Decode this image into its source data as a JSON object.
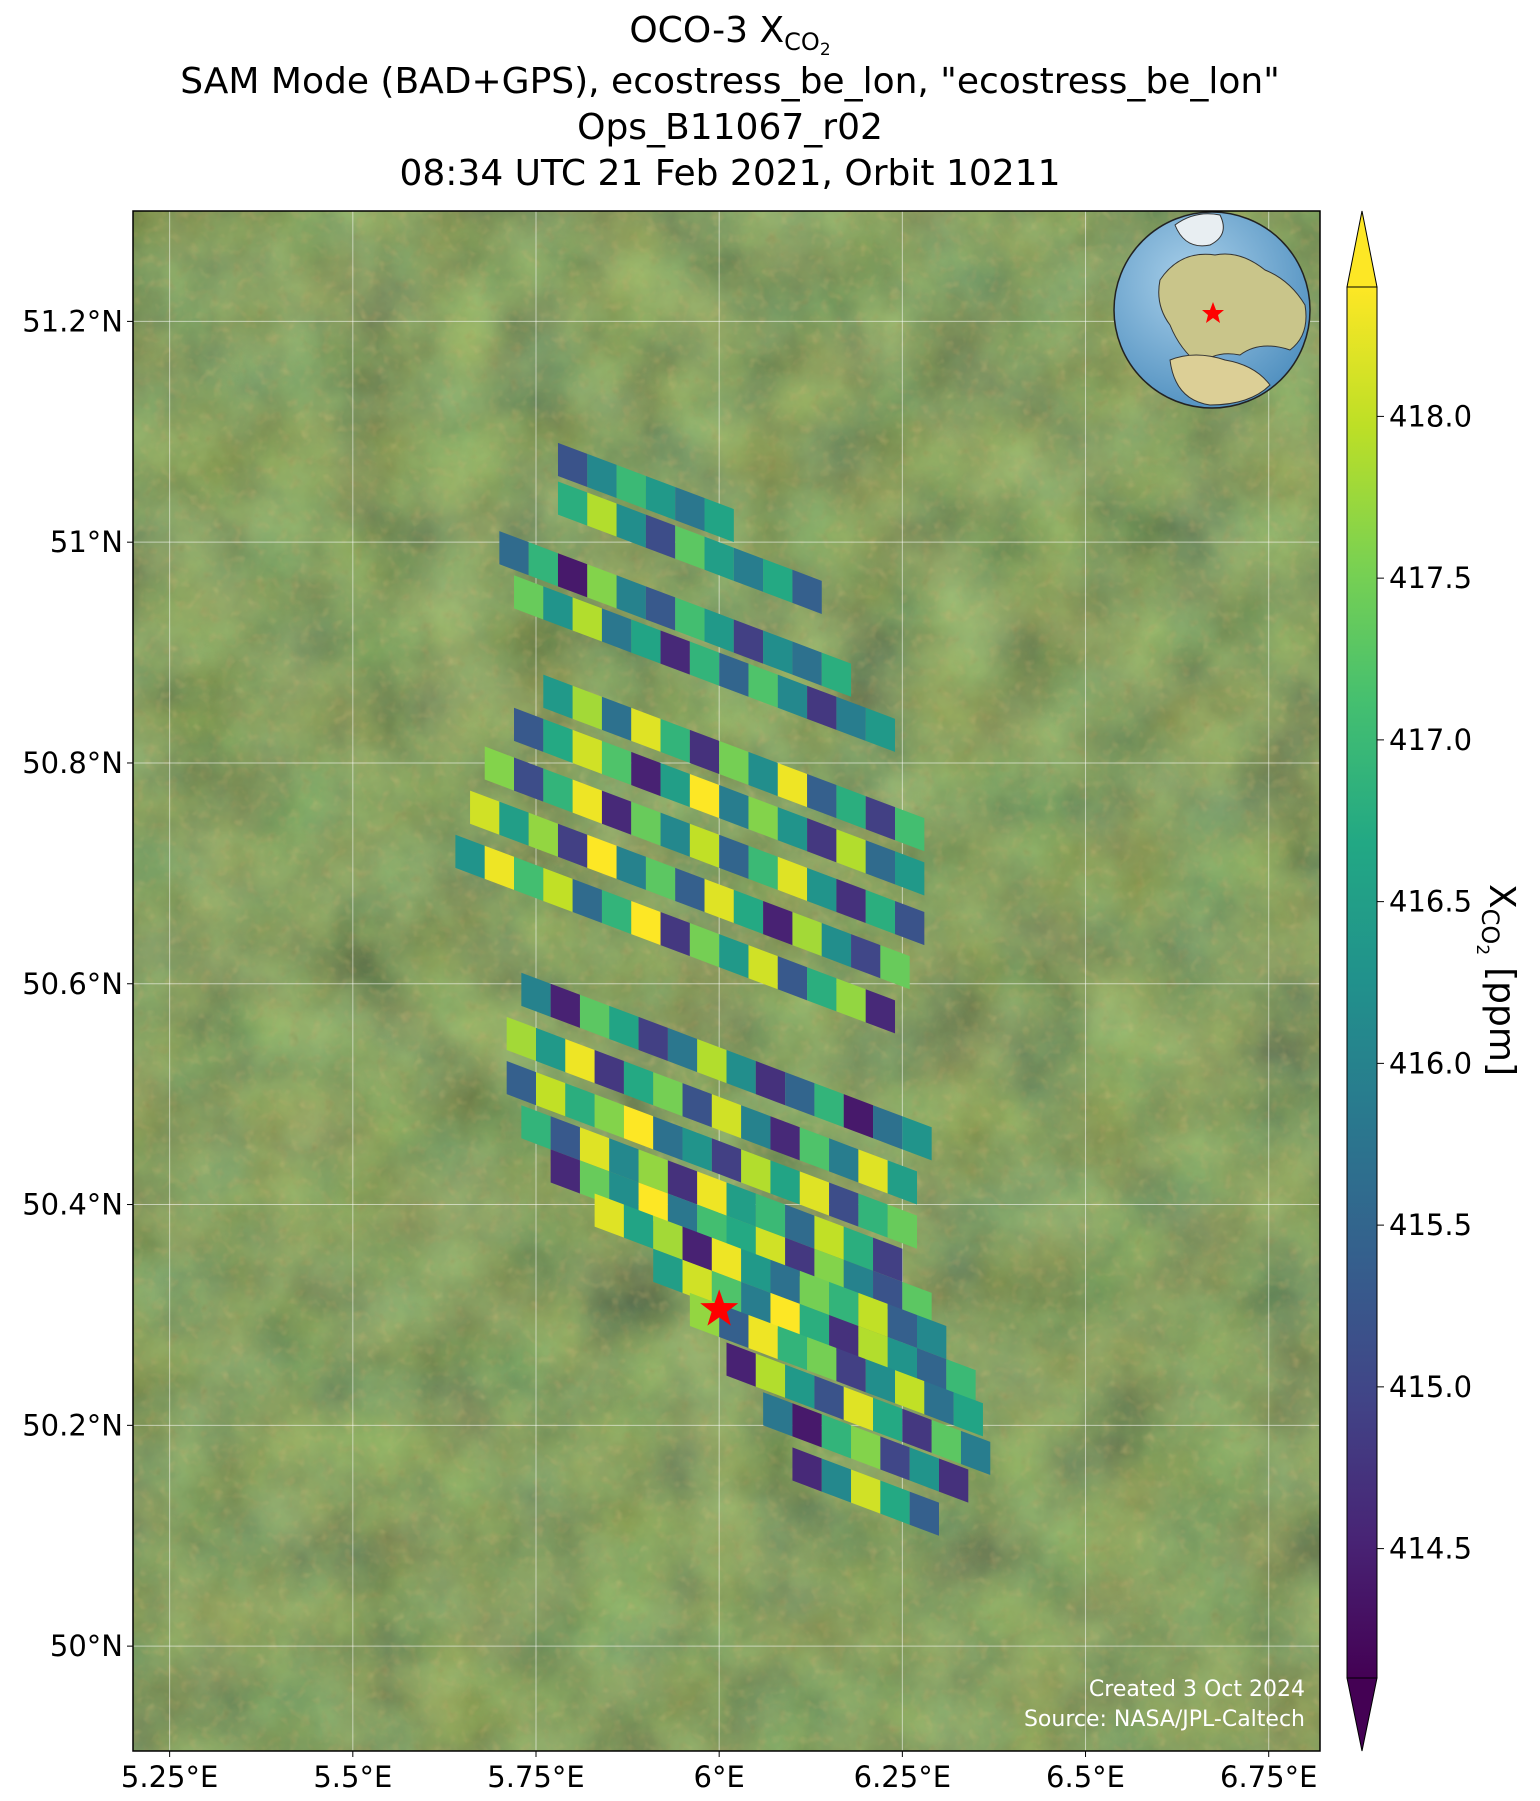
{
  "chart_data": {
    "type": "map",
    "title": {
      "symbol": "OCO-3 X",
      "subscript": "CO",
      "subsubscript": "2"
    },
    "subtitle_lines": [
      "SAM Mode (BAD+GPS), ecostress_be_lon, \"ecostress_be_lon\"",
      "Ops_B11067_r02",
      "08:34 UTC 21 Feb 2021, Orbit 10211"
    ],
    "xlim": [
      5.2,
      6.82
    ],
    "ylim": [
      49.905,
      51.3
    ],
    "xticks": [
      {
        "value": 5.25,
        "label": "5.25°E"
      },
      {
        "value": 5.5,
        "label": "5.5°E"
      },
      {
        "value": 5.75,
        "label": "5.75°E"
      },
      {
        "value": 6.0,
        "label": "6°E"
      },
      {
        "value": 6.25,
        "label": "6.25°E"
      },
      {
        "value": 6.5,
        "label": "6.5°E"
      },
      {
        "value": 6.75,
        "label": "6.75°E"
      }
    ],
    "yticks": [
      {
        "value": 50.0,
        "label": "50°N"
      },
      {
        "value": 50.2,
        "label": "50.2°N"
      },
      {
        "value": 50.4,
        "label": "50.4°N"
      },
      {
        "value": 50.6,
        "label": "50.6°N"
      },
      {
        "value": 50.8,
        "label": "50.8°N"
      },
      {
        "value": 51.0,
        "label": "51°N"
      },
      {
        "value": 51.2,
        "label": "51.2°N"
      }
    ],
    "grid": true,
    "clim": [
      414.1,
      418.4
    ],
    "colormap": "viridis",
    "colorbar_ticks": [
      414.5,
      {
        "value": 415.0,
        "label": "415.0"
      },
      415.5,
      {
        "value": 416.0,
        "label": "416.0"
      },
      416.5,
      {
        "value": 417.0,
        "label": "417.0"
      },
      417.5,
      {
        "value": 418.0,
        "label": "418.0"
      }
    ],
    "colorbar_label": {
      "symbol": "X",
      "subscript": "CO",
      "subsubscript": "2",
      "units": "[ppm]"
    },
    "target": {
      "lon": 6.0,
      "lat": 50.305,
      "color": "#ff0000"
    },
    "annotations": [
      "Created 3 Oct 2024",
      "Source: NASA/JPL-Caltech"
    ],
    "footprints": [
      [
        5.8,
        51.07,
        415.2
      ],
      [
        5.84,
        51.06,
        416.1
      ],
      [
        5.88,
        51.05,
        417.0
      ],
      [
        5.92,
        51.04,
        416.4
      ],
      [
        5.96,
        51.03,
        415.8
      ],
      [
        6.0,
        51.02,
        416.6
      ],
      [
        5.8,
        51.035,
        416.8
      ],
      [
        5.84,
        51.025,
        417.9
      ],
      [
        5.88,
        51.015,
        416.2
      ],
      [
        5.92,
        51.005,
        415.1
      ],
      [
        5.96,
        50.995,
        417.3
      ],
      [
        6.0,
        50.985,
        416.5
      ],
      [
        6.04,
        50.975,
        415.9
      ],
      [
        6.08,
        50.965,
        416.7
      ],
      [
        6.12,
        50.955,
        415.4
      ],
      [
        5.72,
        50.99,
        415.6
      ],
      [
        5.76,
        50.98,
        416.9
      ],
      [
        5.8,
        50.97,
        414.4
      ],
      [
        5.84,
        50.96,
        417.6
      ],
      [
        5.88,
        50.95,
        416.0
      ],
      [
        5.92,
        50.94,
        415.3
      ],
      [
        5.96,
        50.93,
        417.1
      ],
      [
        6.0,
        50.92,
        416.4
      ],
      [
        6.04,
        50.91,
        414.9
      ],
      [
        6.08,
        50.9,
        416.2
      ],
      [
        6.12,
        50.89,
        415.7
      ],
      [
        6.16,
        50.88,
        416.8
      ],
      [
        5.74,
        50.95,
        417.4
      ],
      [
        5.78,
        50.94,
        416.3
      ],
      [
        5.82,
        50.93,
        417.9
      ],
      [
        5.86,
        50.92,
        415.8
      ],
      [
        5.9,
        50.91,
        416.6
      ],
      [
        5.94,
        50.9,
        414.6
      ],
      [
        5.98,
        50.89,
        416.9
      ],
      [
        6.02,
        50.88,
        415.5
      ],
      [
        6.06,
        50.87,
        417.2
      ],
      [
        6.1,
        50.86,
        416.1
      ],
      [
        6.14,
        50.85,
        414.8
      ],
      [
        6.18,
        50.84,
        415.9
      ],
      [
        6.22,
        50.83,
        416.4
      ],
      [
        5.78,
        50.86,
        416.4
      ],
      [
        5.82,
        50.85,
        417.8
      ],
      [
        5.86,
        50.84,
        415.7
      ],
      [
        5.9,
        50.83,
        418.2
      ],
      [
        5.94,
        50.82,
        416.9
      ],
      [
        5.98,
        50.81,
        414.7
      ],
      [
        6.02,
        50.8,
        417.5
      ],
      [
        6.06,
        50.79,
        416.2
      ],
      [
        6.1,
        50.78,
        418.3
      ],
      [
        6.14,
        50.77,
        415.4
      ],
      [
        6.18,
        50.76,
        416.8
      ],
      [
        6.22,
        50.75,
        414.9
      ],
      [
        6.26,
        50.74,
        417.1
      ],
      [
        5.74,
        50.83,
        415.3
      ],
      [
        5.78,
        50.82,
        416.7
      ],
      [
        5.82,
        50.81,
        418.1
      ],
      [
        5.86,
        50.8,
        417.2
      ],
      [
        5.9,
        50.79,
        414.5
      ],
      [
        5.94,
        50.78,
        416.5
      ],
      [
        5.98,
        50.77,
        418.4
      ],
      [
        6.02,
        50.76,
        415.9
      ],
      [
        6.06,
        50.75,
        417.6
      ],
      [
        6.1,
        50.74,
        416.3
      ],
      [
        6.14,
        50.73,
        414.8
      ],
      [
        6.18,
        50.72,
        417.9
      ],
      [
        6.22,
        50.71,
        415.6
      ],
      [
        6.26,
        50.7,
        416.4
      ],
      [
        5.7,
        50.795,
        417.6
      ],
      [
        5.74,
        50.785,
        415.1
      ],
      [
        5.78,
        50.775,
        416.9
      ],
      [
        5.82,
        50.765,
        418.3
      ],
      [
        5.86,
        50.755,
        414.6
      ],
      [
        5.9,
        50.745,
        417.4
      ],
      [
        5.94,
        50.735,
        416.1
      ],
      [
        5.98,
        50.725,
        418.0
      ],
      [
        6.02,
        50.715,
        415.5
      ],
      [
        6.06,
        50.705,
        417.0
      ],
      [
        6.1,
        50.695,
        418.2
      ],
      [
        6.14,
        50.685,
        416.3
      ],
      [
        6.18,
        50.675,
        414.7
      ],
      [
        6.22,
        50.665,
        416.8
      ],
      [
        6.26,
        50.655,
        415.2
      ],
      [
        5.68,
        50.755,
        418.1
      ],
      [
        5.72,
        50.745,
        416.5
      ],
      [
        5.76,
        50.735,
        417.7
      ],
      [
        5.8,
        50.725,
        414.9
      ],
      [
        5.84,
        50.715,
        418.4
      ],
      [
        5.88,
        50.705,
        416.0
      ],
      [
        5.92,
        50.695,
        417.3
      ],
      [
        5.96,
        50.685,
        415.4
      ],
      [
        6.0,
        50.675,
        418.2
      ],
      [
        6.04,
        50.665,
        416.7
      ],
      [
        6.08,
        50.655,
        414.5
      ],
      [
        6.12,
        50.645,
        417.8
      ],
      [
        6.16,
        50.635,
        416.2
      ],
      [
        6.2,
        50.625,
        415.0
      ],
      [
        6.24,
        50.615,
        417.4
      ],
      [
        5.66,
        50.715,
        416.3
      ],
      [
        5.7,
        50.705,
        418.3
      ],
      [
        5.74,
        50.695,
        417.1
      ],
      [
        5.78,
        50.685,
        418.0
      ],
      [
        5.82,
        50.675,
        415.6
      ],
      [
        5.86,
        50.665,
        416.9
      ],
      [
        5.9,
        50.655,
        418.4
      ],
      [
        5.94,
        50.645,
        414.8
      ],
      [
        5.98,
        50.635,
        417.5
      ],
      [
        6.02,
        50.625,
        416.4
      ],
      [
        6.06,
        50.615,
        418.1
      ],
      [
        6.1,
        50.605,
        415.3
      ],
      [
        6.14,
        50.595,
        416.8
      ],
      [
        6.18,
        50.585,
        417.7
      ],
      [
        6.22,
        50.575,
        414.6
      ],
      [
        5.75,
        50.59,
        416.0
      ],
      [
        5.79,
        50.58,
        414.5
      ],
      [
        5.83,
        50.57,
        417.3
      ],
      [
        5.87,
        50.56,
        416.6
      ],
      [
        5.91,
        50.55,
        414.9
      ],
      [
        5.95,
        50.54,
        415.8
      ],
      [
        5.99,
        50.53,
        417.9
      ],
      [
        6.03,
        50.52,
        416.2
      ],
      [
        6.07,
        50.51,
        414.7
      ],
      [
        6.11,
        50.5,
        415.5
      ],
      [
        6.15,
        50.49,
        416.9
      ],
      [
        6.19,
        50.48,
        414.4
      ],
      [
        6.23,
        50.47,
        415.7
      ],
      [
        6.27,
        50.46,
        416.3
      ],
      [
        5.73,
        50.55,
        417.8
      ],
      [
        5.77,
        50.54,
        416.4
      ],
      [
        5.81,
        50.53,
        418.3
      ],
      [
        5.85,
        50.52,
        414.8
      ],
      [
        5.89,
        50.51,
        416.7
      ],
      [
        5.93,
        50.5,
        417.5
      ],
      [
        5.97,
        50.49,
        415.2
      ],
      [
        6.01,
        50.48,
        418.1
      ],
      [
        6.05,
        50.47,
        416.0
      ],
      [
        6.09,
        50.46,
        414.6
      ],
      [
        6.13,
        50.45,
        417.2
      ],
      [
        6.17,
        50.44,
        415.9
      ],
      [
        6.21,
        50.43,
        418.2
      ],
      [
        6.25,
        50.42,
        416.5
      ],
      [
        5.73,
        50.51,
        415.4
      ],
      [
        5.77,
        50.5,
        418.0
      ],
      [
        5.81,
        50.49,
        416.8
      ],
      [
        5.85,
        50.48,
        417.6
      ],
      [
        5.89,
        50.47,
        418.4
      ],
      [
        5.93,
        50.46,
        415.7
      ],
      [
        5.97,
        50.45,
        416.3
      ],
      [
        6.01,
        50.44,
        414.9
      ],
      [
        6.05,
        50.43,
        417.9
      ],
      [
        6.09,
        50.42,
        416.6
      ],
      [
        6.13,
        50.41,
        418.2
      ],
      [
        6.17,
        50.4,
        415.1
      ],
      [
        6.21,
        50.39,
        416.9
      ],
      [
        6.25,
        50.38,
        417.4
      ],
      [
        5.75,
        50.47,
        416.9
      ],
      [
        5.79,
        50.46,
        415.3
      ],
      [
        5.83,
        50.45,
        418.2
      ],
      [
        5.87,
        50.44,
        416.1
      ],
      [
        5.91,
        50.43,
        417.7
      ],
      [
        5.95,
        50.42,
        414.7
      ],
      [
        5.99,
        50.41,
        418.3
      ],
      [
        6.03,
        50.4,
        416.5
      ],
      [
        6.07,
        50.39,
        417.0
      ],
      [
        6.11,
        50.38,
        415.6
      ],
      [
        6.15,
        50.37,
        418.0
      ],
      [
        6.19,
        50.36,
        416.8
      ],
      [
        6.23,
        50.35,
        414.9
      ],
      [
        5.79,
        50.43,
        414.6
      ],
      [
        5.83,
        50.42,
        417.4
      ],
      [
        5.87,
        50.41,
        416.2
      ],
      [
        5.91,
        50.4,
        418.4
      ],
      [
        5.95,
        50.39,
        415.8
      ],
      [
        5.99,
        50.38,
        417.1
      ],
      [
        6.03,
        50.37,
        416.7
      ],
      [
        6.07,
        50.36,
        418.1
      ],
      [
        6.11,
        50.35,
        414.8
      ],
      [
        6.15,
        50.34,
        417.6
      ],
      [
        6.19,
        50.33,
        416.0
      ],
      [
        6.23,
        50.32,
        415.2
      ],
      [
        6.27,
        50.31,
        417.3
      ],
      [
        5.85,
        50.39,
        418.2
      ],
      [
        5.89,
        50.38,
        416.6
      ],
      [
        5.93,
        50.37,
        417.8
      ],
      [
        5.97,
        50.36,
        414.5
      ],
      [
        6.01,
        50.35,
        418.3
      ],
      [
        6.05,
        50.34,
        416.4
      ],
      [
        6.09,
        50.33,
        415.7
      ],
      [
        6.13,
        50.32,
        417.5
      ],
      [
        6.17,
        50.31,
        416.9
      ],
      [
        6.21,
        50.3,
        418.0
      ],
      [
        6.25,
        50.29,
        415.4
      ],
      [
        6.29,
        50.28,
        416.1
      ],
      [
        5.93,
        50.34,
        416.5
      ],
      [
        5.97,
        50.33,
        418.1
      ],
      [
        6.01,
        50.32,
        417.2
      ],
      [
        6.05,
        50.31,
        415.9
      ],
      [
        6.09,
        50.3,
        418.4
      ],
      [
        6.13,
        50.29,
        416.8
      ],
      [
        6.17,
        50.28,
        414.7
      ],
      [
        6.21,
        50.27,
        417.9
      ],
      [
        6.25,
        50.26,
        416.3
      ],
      [
        6.29,
        50.25,
        415.5
      ],
      [
        6.33,
        50.24,
        417.0
      ],
      [
        5.98,
        50.3,
        417.7
      ],
      [
        6.02,
        50.29,
        415.4
      ],
      [
        6.06,
        50.28,
        418.3
      ],
      [
        6.1,
        50.27,
        416.9
      ],
      [
        6.14,
        50.26,
        417.5
      ],
      [
        6.18,
        50.25,
        414.9
      ],
      [
        6.22,
        50.24,
        416.2
      ],
      [
        6.26,
        50.23,
        418.0
      ],
      [
        6.3,
        50.22,
        415.7
      ],
      [
        6.34,
        50.21,
        416.6
      ],
      [
        6.03,
        50.255,
        414.5
      ],
      [
        6.07,
        50.245,
        417.9
      ],
      [
        6.11,
        50.235,
        416.4
      ],
      [
        6.15,
        50.225,
        415.2
      ],
      [
        6.19,
        50.215,
        418.2
      ],
      [
        6.23,
        50.205,
        416.7
      ],
      [
        6.27,
        50.195,
        414.8
      ],
      [
        6.31,
        50.185,
        417.3
      ],
      [
        6.35,
        50.175,
        415.9
      ],
      [
        6.08,
        50.21,
        415.8
      ],
      [
        6.12,
        50.2,
        414.4
      ],
      [
        6.16,
        50.19,
        416.9
      ],
      [
        6.2,
        50.18,
        417.6
      ],
      [
        6.24,
        50.17,
        415.0
      ],
      [
        6.28,
        50.16,
        416.3
      ],
      [
        6.32,
        50.15,
        414.7
      ],
      [
        6.12,
        50.16,
        414.6
      ],
      [
        6.16,
        50.15,
        416.1
      ],
      [
        6.2,
        50.14,
        418.1
      ],
      [
        6.24,
        50.13,
        416.7
      ],
      [
        6.28,
        50.12,
        415.4
      ]
    ]
  }
}
